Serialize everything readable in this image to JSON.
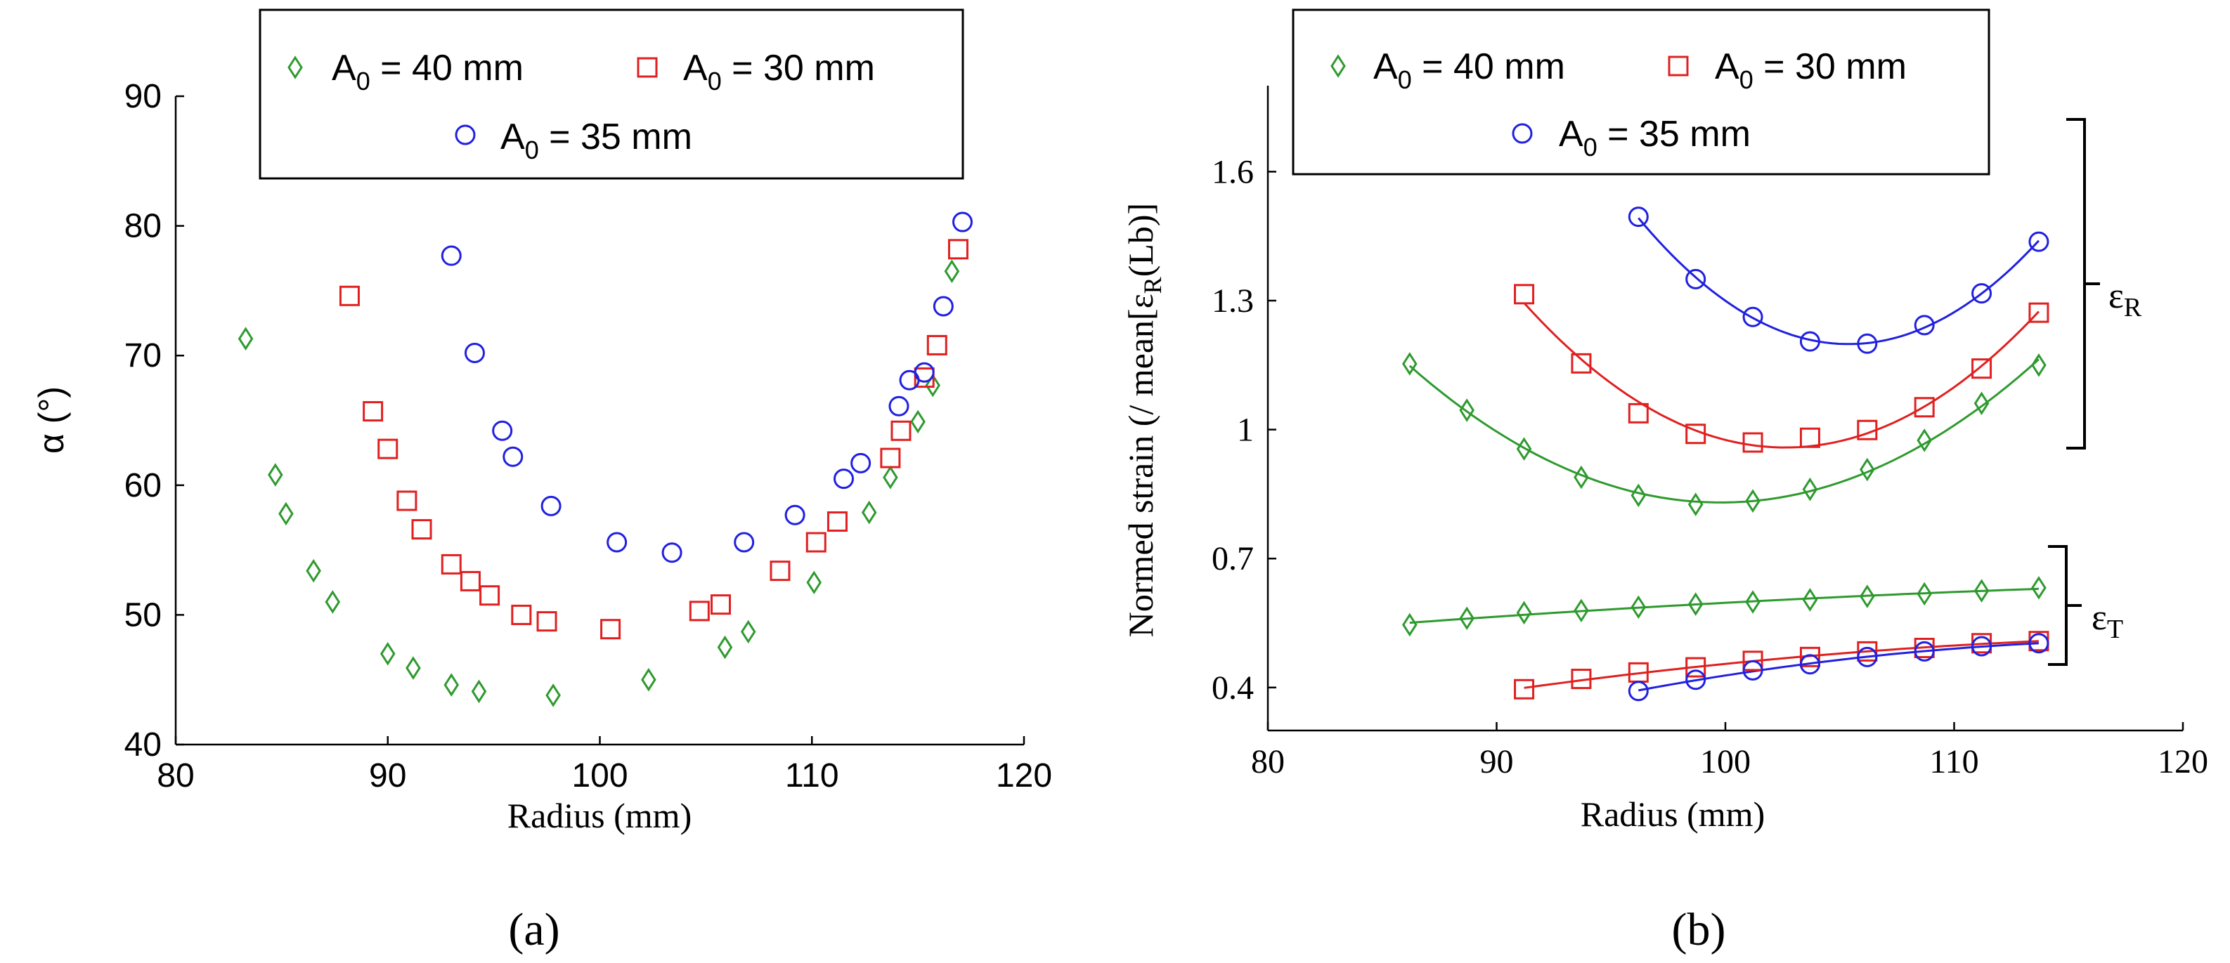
{
  "colors": {
    "green": "#2e9a2e",
    "red": "#e02020",
    "blue": "#2020e0",
    "axis": "#000000"
  },
  "legend_labels": {
    "a40": {
      "a": "A",
      "sub": "0",
      "b": " = 40 mm"
    },
    "a30": {
      "a": "A",
      "sub": "0",
      "b": " = 30 mm"
    },
    "a35": {
      "a": "A",
      "sub": "0",
      "b": " = 35 mm"
    }
  },
  "chart_data": [
    {
      "type": "scatter",
      "panel_label": "(a)",
      "xlabel": "Radius (mm)",
      "ylabel": "α (°)",
      "xlim": [
        80,
        120
      ],
      "ylim": [
        40,
        90
      ],
      "xticks": [
        "80",
        "90",
        "100",
        "110",
        "120"
      ],
      "yticks": [
        "40",
        "50",
        "60",
        "70",
        "80",
        "90"
      ],
      "legend_position": "top-center",
      "series": [
        {
          "name": "A0 = 40 mm",
          "marker": "diamond",
          "color": "green",
          "points": [
            [
              83.3,
              71.3
            ],
            [
              84.7,
              60.8
            ],
            [
              85.2,
              57.8
            ],
            [
              86.5,
              53.4
            ],
            [
              87.4,
              51.0
            ],
            [
              90.0,
              47.0
            ],
            [
              91.2,
              45.9
            ],
            [
              93.0,
              44.6
            ],
            [
              94.3,
              44.1
            ],
            [
              97.8,
              43.8
            ],
            [
              102.3,
              45.0
            ],
            [
              105.9,
              47.5
            ],
            [
              107.0,
              48.7
            ],
            [
              110.1,
              52.5
            ],
            [
              112.7,
              57.9
            ],
            [
              113.7,
              60.6
            ],
            [
              115.0,
              64.9
            ],
            [
              115.7,
              67.7
            ],
            [
              116.6,
              76.5
            ]
          ]
        },
        {
          "name": "A0 = 30 mm",
          "marker": "square",
          "color": "red",
          "points": [
            [
              88.2,
              74.6
            ],
            [
              89.3,
              65.7
            ],
            [
              90.0,
              62.8
            ],
            [
              90.9,
              58.8
            ],
            [
              91.6,
              56.6
            ],
            [
              93.0,
              53.9
            ],
            [
              93.9,
              52.6
            ],
            [
              94.8,
              51.5
            ],
            [
              96.3,
              50.0
            ],
            [
              97.5,
              49.5
            ],
            [
              100.5,
              48.9
            ],
            [
              104.7,
              50.3
            ],
            [
              105.7,
              50.8
            ],
            [
              108.5,
              53.4
            ],
            [
              110.2,
              55.6
            ],
            [
              111.2,
              57.2
            ],
            [
              113.7,
              62.1
            ],
            [
              114.2,
              64.2
            ],
            [
              115.3,
              68.3
            ],
            [
              115.9,
              70.8
            ],
            [
              116.9,
              78.2
            ]
          ]
        },
        {
          "name": "A0 = 35 mm",
          "marker": "circle",
          "color": "blue",
          "points": [
            [
              93.0,
              77.7
            ],
            [
              94.1,
              70.2
            ],
            [
              95.4,
              64.2
            ],
            [
              95.9,
              62.2
            ],
            [
              97.7,
              58.4
            ],
            [
              100.8,
              55.6
            ],
            [
              103.4,
              54.8
            ],
            [
              106.8,
              55.6
            ],
            [
              109.2,
              57.7
            ],
            [
              111.5,
              60.5
            ],
            [
              112.3,
              61.7
            ],
            [
              114.1,
              66.1
            ],
            [
              114.6,
              68.1
            ],
            [
              115.3,
              68.7
            ],
            [
              116.2,
              73.8
            ],
            [
              117.1,
              80.3
            ]
          ]
        }
      ]
    },
    {
      "type": "line",
      "panel_label": "(b)",
      "xlabel": "Radius (mm)",
      "ylabel": {
        "main": "Normed strain (/ mean[ε",
        "sub": "R",
        "tail": "(Lb)]"
      },
      "xlim": [
        80,
        120
      ],
      "ylim": [
        0.3,
        1.8
      ],
      "xticks": [
        "80",
        "90",
        "100",
        "110",
        "120"
      ],
      "yticks": [
        "0.4",
        "0.7",
        "1",
        "1.3",
        "1.6"
      ],
      "legend_position": "top-center",
      "bracket_labels": {
        "eR": {
          "main": "ε",
          "sub": "R"
        },
        "eT": {
          "main": "ε",
          "sub": "T"
        }
      },
      "x_samples": [
        86.2,
        88.7,
        91.2,
        93.7,
        96.2,
        98.7,
        101.2,
        103.7,
        106.2,
        108.7,
        111.2,
        113.7
      ],
      "series": [
        {
          "name": "A0 = 40 mm εR",
          "marker": "diamond",
          "color": "green",
          "points": [
            [
              86.2,
              1.153
            ],
            [
              88.7,
              1.045
            ],
            [
              91.2,
              0.955
            ],
            [
              93.7,
              0.889
            ],
            [
              96.2,
              0.847
            ],
            [
              98.7,
              0.826
            ],
            [
              101.2,
              0.834
            ],
            [
              103.7,
              0.861
            ],
            [
              106.2,
              0.907
            ],
            [
              108.7,
              0.975
            ],
            [
              111.2,
              1.061
            ],
            [
              113.7,
              1.15
            ]
          ]
        },
        {
          "name": "A0 = 30 mm εR",
          "marker": "square",
          "color": "red",
          "points": [
            [
              91.2,
              1.315
            ],
            [
              93.7,
              1.154
            ],
            [
              96.2,
              1.038
            ],
            [
              98.7,
              0.99
            ],
            [
              101.2,
              0.97
            ],
            [
              103.7,
              0.981
            ],
            [
              106.2,
              0.999
            ],
            [
              108.7,
              1.052
            ],
            [
              111.2,
              1.142
            ],
            [
              113.7,
              1.272
            ]
          ]
        },
        {
          "name": "A0 = 35 mm εR",
          "marker": "circle",
          "color": "blue",
          "points": [
            [
              96.2,
              1.495
            ],
            [
              98.7,
              1.35
            ],
            [
              101.2,
              1.262
            ],
            [
              103.7,
              1.205
            ],
            [
              106.2,
              1.2
            ],
            [
              108.7,
              1.243
            ],
            [
              111.2,
              1.317
            ],
            [
              113.7,
              1.437
            ]
          ]
        },
        {
          "name": "A0 = 40 mm εT",
          "marker": "diamond",
          "color": "green",
          "points": [
            [
              86.2,
              0.546
            ],
            [
              88.7,
              0.561
            ],
            [
              91.2,
              0.574
            ],
            [
              93.7,
              0.579
            ],
            [
              96.2,
              0.587
            ],
            [
              98.7,
              0.594
            ],
            [
              101.2,
              0.599
            ],
            [
              103.7,
              0.604
            ],
            [
              106.2,
              0.612
            ],
            [
              108.7,
              0.618
            ],
            [
              111.2,
              0.625
            ],
            [
              113.7,
              0.632
            ]
          ]
        },
        {
          "name": "A0 = 30 mm εT",
          "marker": "square",
          "color": "red",
          "points": [
            [
              91.2,
              0.396
            ],
            [
              93.7,
              0.42
            ],
            [
              96.2,
              0.435
            ],
            [
              98.7,
              0.447
            ],
            [
              101.2,
              0.462
            ],
            [
              103.7,
              0.471
            ],
            [
              106.2,
              0.484
            ],
            [
              108.7,
              0.492
            ],
            [
              111.2,
              0.503
            ],
            [
              113.7,
              0.508
            ]
          ]
        },
        {
          "name": "A0 = 35 mm εT",
          "marker": "circle",
          "color": "blue",
          "points": [
            [
              96.2,
              0.392
            ],
            [
              98.7,
              0.418
            ],
            [
              101.2,
              0.44
            ],
            [
              103.7,
              0.454
            ],
            [
              106.2,
              0.471
            ],
            [
              108.7,
              0.484
            ],
            [
              111.2,
              0.496
            ],
            [
              113.7,
              0.503
            ]
          ]
        }
      ]
    }
  ]
}
